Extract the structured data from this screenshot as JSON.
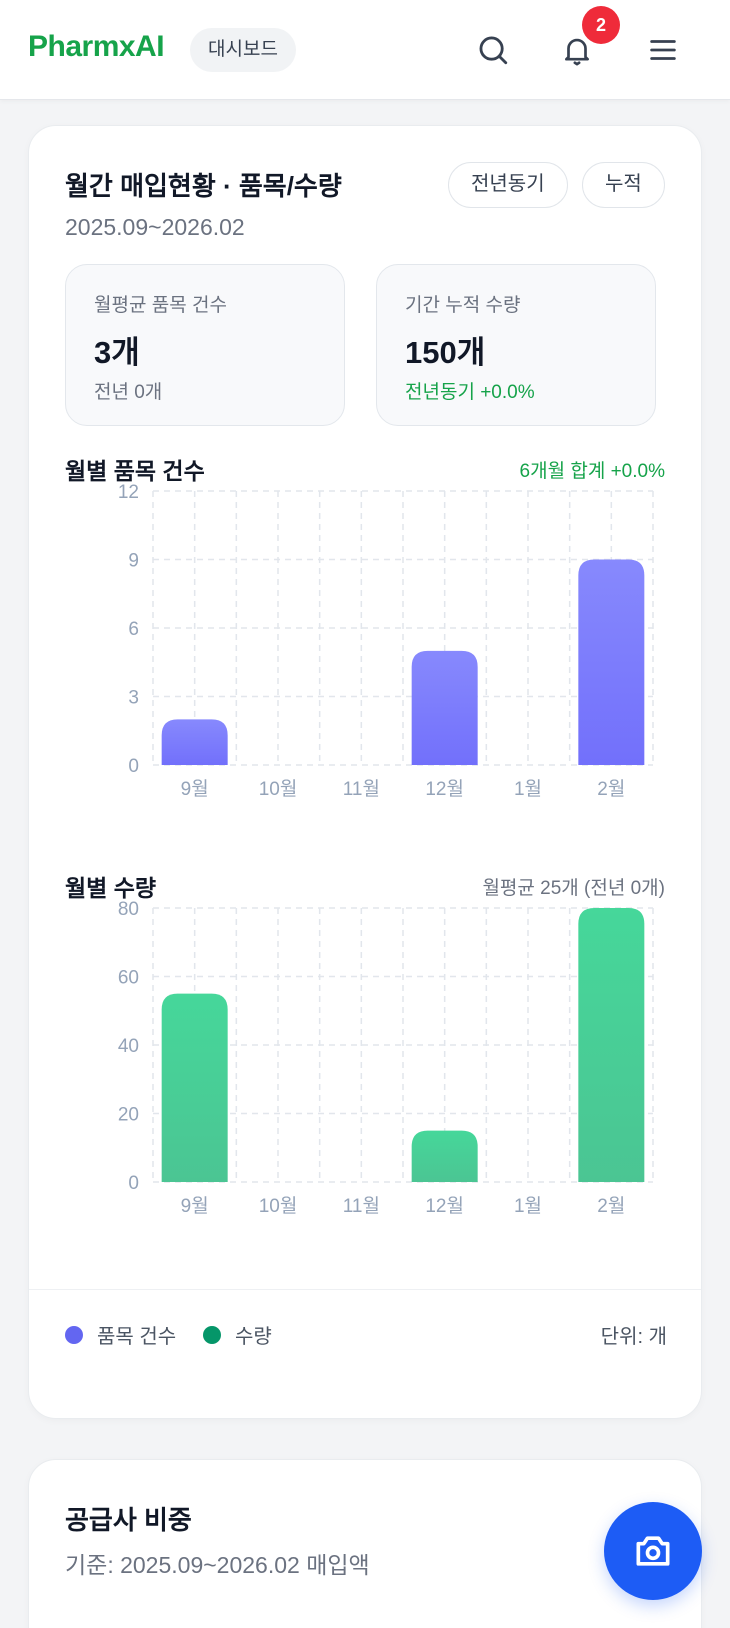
{
  "header": {
    "brand": "PharmxAI",
    "page_pill": "대시보드",
    "notification_count": "2",
    "icons": [
      "search-icon",
      "bell-icon",
      "menu-icon"
    ]
  },
  "monthly_card": {
    "title": "월간 매입현황 · 품목/수량",
    "period": "2025.09~2026.02",
    "chips": [
      {
        "label": "전년동기"
      },
      {
        "label": "누적"
      }
    ],
    "stats": [
      {
        "label": "월평균 품목 건수",
        "value": "3개",
        "foot": "전년 0개"
      },
      {
        "label": "기간 누적 수량",
        "value": "150개",
        "foot": "전년동기 +0.0%"
      }
    ],
    "items_chart": {
      "title": "월별 품목 건수",
      "meta": "6개월 합계 +0.0%"
    },
    "qty_chart": {
      "title": "월별 수량",
      "meta": "월평균 25개 (전년 0개)"
    },
    "legend": [
      {
        "label": "품목 건수",
        "color": "#6366f1"
      },
      {
        "label": "수량",
        "color": "#059669"
      }
    ],
    "unit": "단위: 개"
  },
  "supplier_card": {
    "title": "공급사 비중",
    "subtitle": "기준: 2025.09~2026.02 매입액"
  },
  "fab": {
    "icon": "camera-icon"
  },
  "colors": {
    "brand": "#16a34a",
    "purple_bar": "#7473fb",
    "green_bar": "#47d198",
    "badge": "#ef2b3a",
    "fab": "#1d5cf5"
  },
  "chart_data": [
    {
      "type": "bar",
      "title": "월별 품목 건수",
      "categories": [
        "9월",
        "10월",
        "11월",
        "12월",
        "1월",
        "2월"
      ],
      "values": [
        2,
        0,
        0,
        5,
        0,
        9
      ],
      "yticks": [
        0,
        3,
        6,
        9,
        12
      ],
      "ylim": [
        0,
        12
      ],
      "xlabel": "",
      "ylabel": "",
      "grid": true,
      "annotation": "6개월 합계 +0.0%"
    },
    {
      "type": "bar",
      "title": "월별 수량",
      "categories": [
        "9월",
        "10월",
        "11월",
        "12월",
        "1월",
        "2월"
      ],
      "values": [
        55,
        0,
        0,
        15,
        0,
        80
      ],
      "yticks": [
        0,
        20,
        40,
        60,
        80
      ],
      "ylim": [
        0,
        80
      ],
      "xlabel": "",
      "ylabel": "",
      "grid": true,
      "annotation": "월평균 25개 (전년 0개)"
    }
  ]
}
